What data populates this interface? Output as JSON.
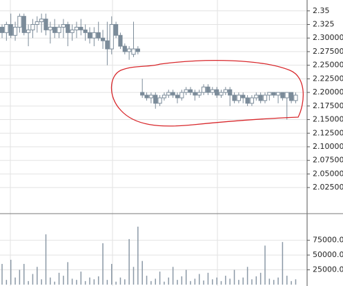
{
  "chart_data": [
    {
      "type": "candlestick",
      "color": "#7b8b99",
      "up_color": "#ffffff",
      "grid": true,
      "ylim": [
        1.977,
        2.37
      ],
      "yticks": [
        2.35,
        2.325,
        {
          "value": 2.3,
          "label": "2.30000"
        },
        {
          "value": 2.275,
          "label": "2.27500"
        },
        {
          "value": 2.25,
          "label": "2.25000"
        },
        {
          "value": 2.225,
          "label": "2.22500"
        },
        {
          "value": 2.2,
          "label": "2.20000"
        },
        {
          "value": 2.175,
          "label": "2.17500"
        },
        {
          "value": 2.15,
          "label": "2.15000"
        },
        {
          "value": 2.125,
          "label": "2.12500"
        },
        {
          "value": 2.1,
          "label": "2.10000"
        },
        {
          "value": 2.075,
          "label": "2.07500"
        },
        {
          "value": 2.05,
          "label": "2.05000"
        },
        {
          "value": 2.025,
          "label": "2.02500"
        }
      ],
      "open": [
        2.32,
        2.31,
        2.325,
        2.305,
        2.32,
        2.34,
        2.31,
        2.315,
        2.325,
        2.33,
        2.335,
        2.315,
        2.32,
        2.31,
        2.32,
        2.325,
        2.31,
        2.315,
        2.32,
        2.315,
        2.31,
        2.3,
        2.31,
        2.3,
        2.295,
        2.28,
        2.325,
        2.305,
        2.285,
        2.275,
        2.27,
        2.28,
        2.2,
        2.195,
        2.19,
        2.195,
        2.18,
        2.19,
        2.195,
        2.2,
        2.195,
        2.19,
        2.2,
        2.205,
        2.2,
        2.195,
        2.2,
        2.21,
        2.2,
        2.205,
        2.195,
        2.2,
        2.205,
        2.195,
        2.185,
        2.195,
        2.19,
        2.18,
        2.19,
        2.195,
        2.185,
        2.195,
        2.2,
        2.195,
        2.2,
        2.19,
        2.2,
        2.185
      ],
      "high": [
        2.325,
        2.33,
        2.345,
        2.33,
        2.345,
        2.345,
        2.325,
        2.335,
        2.34,
        2.345,
        2.345,
        2.33,
        2.335,
        2.325,
        2.335,
        2.33,
        2.325,
        2.33,
        2.335,
        2.325,
        2.32,
        2.32,
        2.33,
        2.315,
        2.33,
        2.34,
        2.33,
        2.31,
        2.29,
        2.285,
        2.33,
        2.285,
        2.225,
        2.2,
        2.2,
        2.2,
        2.195,
        2.2,
        2.205,
        2.205,
        2.2,
        2.205,
        2.21,
        2.21,
        2.205,
        2.205,
        2.215,
        2.215,
        2.21,
        2.21,
        2.205,
        2.21,
        2.21,
        2.2,
        2.2,
        2.2,
        2.195,
        2.195,
        2.2,
        2.2,
        2.2,
        2.2,
        2.2,
        2.2,
        2.2,
        2.2,
        2.2,
        2.2
      ],
      "low": [
        2.3,
        2.295,
        2.3,
        2.295,
        2.31,
        2.305,
        2.285,
        2.3,
        2.31,
        2.31,
        2.305,
        2.29,
        2.3,
        2.3,
        2.3,
        2.285,
        2.295,
        2.3,
        2.305,
        2.295,
        2.29,
        2.285,
        2.295,
        2.28,
        2.25,
        2.27,
        2.3,
        2.28,
        2.27,
        2.26,
        2.265,
        2.27,
        2.19,
        2.185,
        2.18,
        2.17,
        2.175,
        2.185,
        2.19,
        2.19,
        2.18,
        2.185,
        2.195,
        2.195,
        2.185,
        2.19,
        2.195,
        2.195,
        2.195,
        2.19,
        2.19,
        2.195,
        2.175,
        2.18,
        2.18,
        2.18,
        2.175,
        2.175,
        2.185,
        2.18,
        2.18,
        2.185,
        2.19,
        2.18,
        2.185,
        2.15,
        2.18,
        2.18
      ],
      "close": [
        2.31,
        2.325,
        2.305,
        2.32,
        2.34,
        2.31,
        2.315,
        2.325,
        2.33,
        2.335,
        2.315,
        2.32,
        2.31,
        2.32,
        2.325,
        2.31,
        2.315,
        2.32,
        2.315,
        2.31,
        2.3,
        2.31,
        2.3,
        2.295,
        2.28,
        2.325,
        2.305,
        2.285,
        2.275,
        2.28,
        2.28,
        2.275,
        2.195,
        2.19,
        2.195,
        2.18,
        2.19,
        2.195,
        2.2,
        2.195,
        2.19,
        2.2,
        2.205,
        2.2,
        2.195,
        2.2,
        2.21,
        2.2,
        2.205,
        2.195,
        2.2,
        2.205,
        2.195,
        2.185,
        2.195,
        2.19,
        2.18,
        2.19,
        2.195,
        2.185,
        2.195,
        2.2,
        2.195,
        2.2,
        2.19,
        2.2,
        2.185,
        2.195
      ]
    },
    {
      "type": "bar",
      "color": "#8a98a6",
      "grid": true,
      "ylim": [
        0,
        120000
      ],
      "yticks": [
        {
          "value": 75000,
          "label": "75000.0"
        },
        {
          "value": 50000,
          "label": "50000.0"
        },
        {
          "value": 25000,
          "label": "25000.0"
        }
      ],
      "values": [
        35000,
        8000,
        42000,
        12000,
        25000,
        35000,
        6000,
        18000,
        30000,
        9000,
        85000,
        12000,
        5000,
        20000,
        15000,
        38000,
        10000,
        8000,
        22000,
        6000,
        12000,
        9000,
        14000,
        70000,
        8000,
        35000,
        5000,
        12000,
        9000,
        77000,
        30000,
        98000,
        40000,
        15000,
        6000,
        10000,
        22000,
        5000,
        12000,
        30000,
        8000,
        14000,
        25000,
        6000,
        10000,
        18000,
        7000,
        20000,
        9000,
        12000,
        6000,
        15000,
        10000,
        25000,
        8000,
        12000,
        30000,
        9000,
        14000,
        20000,
        66000,
        10000,
        8000,
        12000,
        72000,
        15000,
        6000,
        9000
      ]
    }
  ]
}
